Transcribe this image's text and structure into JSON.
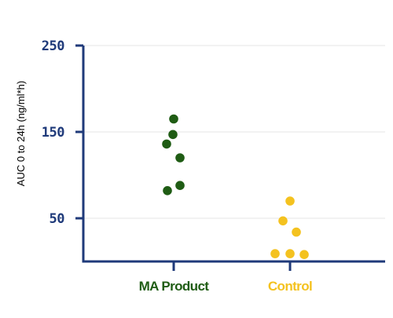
{
  "chart_data": {
    "type": "scatter",
    "categories": [
      "MA Product",
      "Control"
    ],
    "series": [
      {
        "category": "MA Product",
        "values": [
          165,
          147,
          136,
          120,
          88,
          82
        ]
      },
      {
        "category": "Control",
        "values": [
          70,
          47,
          34,
          9,
          9,
          8
        ]
      }
    ],
    "ylabel": "AUC 0 to 24h (ng/ml*h)",
    "xlabel": "",
    "ylim": [
      0,
      250
    ],
    "yticks": [
      50,
      150,
      250
    ],
    "grid": true,
    "legend": "none",
    "colors": {
      "axis": "#1f3a7a",
      "grid": "#e6e6e6",
      "ylabel": "#8a8a8a",
      "MA Product": "#1f5c14",
      "Control": "#f4c21f"
    }
  }
}
